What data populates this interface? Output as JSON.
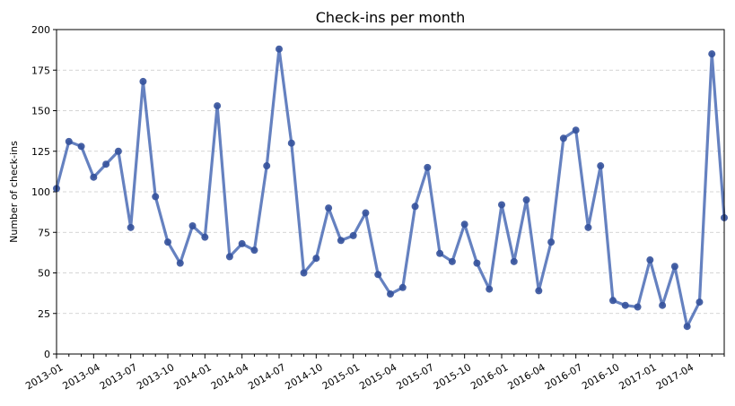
{
  "chart_data": {
    "type": "line",
    "title": "Check-ins per month",
    "xlabel": "",
    "ylabel": "Number of check-ins",
    "ylim": [
      0,
      200
    ],
    "yticks": [
      0,
      25,
      50,
      75,
      100,
      125,
      150,
      175,
      200
    ],
    "grid": "y-dashed",
    "x_tick_labels": [
      "2013-01",
      "2013-04",
      "2013-07",
      "2013-10",
      "2014-01",
      "2014-04",
      "2014-07",
      "2014-10",
      "2015-01",
      "2015-04",
      "2015-07",
      "2015-10",
      "2016-01",
      "2016-04",
      "2016-07",
      "2016-10",
      "2017-01",
      "2017-04"
    ],
    "line_color": "#4a6bb5",
    "marker_color": "#34519b",
    "x": [
      "2013-01",
      "2013-02",
      "2013-03",
      "2013-04",
      "2013-05",
      "2013-06",
      "2013-07",
      "2013-08",
      "2013-09",
      "2013-10",
      "2013-11",
      "2013-12",
      "2014-01",
      "2014-02",
      "2014-03",
      "2014-04",
      "2014-05",
      "2014-06",
      "2014-07",
      "2014-08",
      "2014-09",
      "2014-10",
      "2014-11",
      "2014-12",
      "2015-01",
      "2015-02",
      "2015-03",
      "2015-04",
      "2015-05",
      "2015-06",
      "2015-07",
      "2015-08",
      "2015-09",
      "2015-10",
      "2015-11",
      "2015-12",
      "2016-01",
      "2016-02",
      "2016-03",
      "2016-04",
      "2016-05",
      "2016-06",
      "2016-07",
      "2016-08",
      "2016-09",
      "2016-10",
      "2016-11",
      "2016-12",
      "2017-01",
      "2017-02",
      "2017-03",
      "2017-04",
      "2017-05",
      "2017-06",
      "2017-07"
    ],
    "values": [
      102,
      131,
      128,
      109,
      117,
      125,
      78,
      168,
      97,
      69,
      56,
      79,
      72,
      153,
      60,
      68,
      64,
      116,
      188,
      130,
      50,
      59,
      90,
      70,
      73,
      87,
      49,
      37,
      41,
      91,
      115,
      62,
      57,
      80,
      56,
      40,
      92,
      57,
      95,
      39,
      69,
      133,
      138,
      78,
      116,
      33,
      30,
      29,
      58,
      30,
      54,
      17,
      32,
      185,
      84
    ]
  }
}
